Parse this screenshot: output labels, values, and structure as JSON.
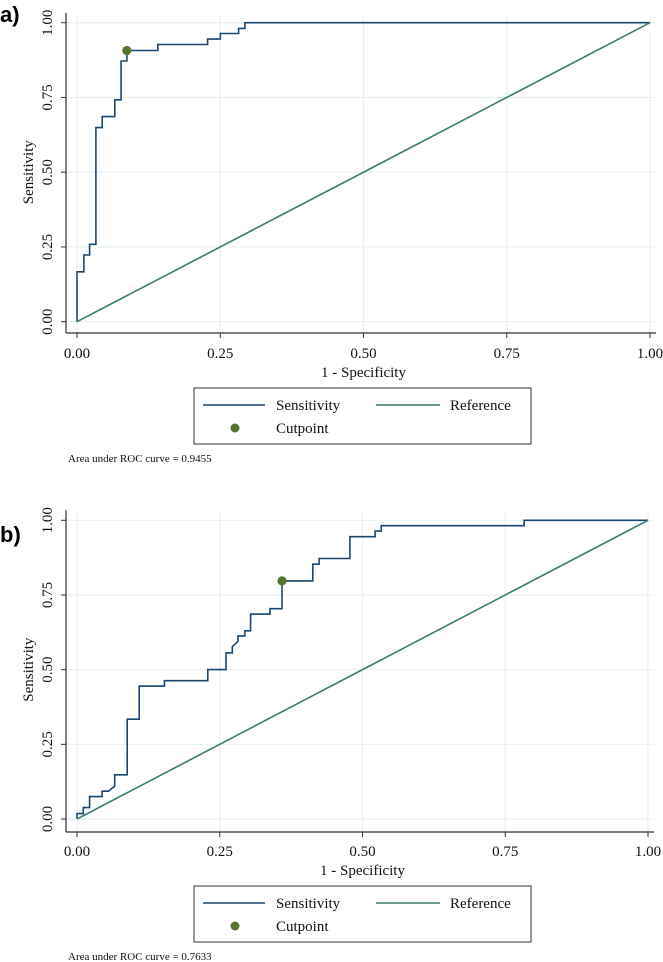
{
  "colors": {
    "sensitivity": "#1a476f",
    "reference": "#3a7d6e",
    "cutpoint": "#55752f",
    "grid": "#e8f0f2"
  },
  "chart_data": [
    {
      "type": "line",
      "panel_label": "a)",
      "xlabel": "1 - Specificity",
      "ylabel": "Sensitivity",
      "xlim": [
        0,
        1
      ],
      "ylim": [
        0,
        1
      ],
      "grid": true,
      "xticks": [
        "0.00",
        "0.25",
        "0.50",
        "0.75",
        "1.00"
      ],
      "yticks": [
        "0.00",
        "0.25",
        "0.50",
        "0.75",
        "1.00"
      ],
      "legend": {
        "placement": "bottom",
        "items": [
          "Sensitivity",
          "Reference",
          "Cutpoint"
        ]
      },
      "note": "Area under ROC curve = 0.9455",
      "series": [
        {
          "name": "Sensitivity",
          "kind": "step",
          "points": [
            [
              0,
              0
            ],
            [
              0,
              0.167
            ],
            [
              0.012,
              0.167
            ],
            [
              0.012,
              0.223
            ],
            [
              0.022,
              0.223
            ],
            [
              0.022,
              0.259
            ],
            [
              0.033,
              0.259
            ],
            [
              0.033,
              0.649
            ],
            [
              0.044,
              0.649
            ],
            [
              0.044,
              0.686
            ],
            [
              0.066,
              0.686
            ],
            [
              0.066,
              0.742
            ],
            [
              0.077,
              0.742
            ],
            [
              0.077,
              0.872
            ],
            [
              0.087,
              0.872
            ],
            [
              0.087,
              0.907
            ],
            [
              0.141,
              0.907
            ],
            [
              0.141,
              0.927
            ],
            [
              0.228,
              0.927
            ],
            [
              0.228,
              0.945
            ],
            [
              0.25,
              0.945
            ],
            [
              0.25,
              0.964
            ],
            [
              0.282,
              0.964
            ],
            [
              0.282,
              0.981
            ],
            [
              0.293,
              0.981
            ],
            [
              0.293,
              1
            ],
            [
              1,
              1
            ]
          ]
        },
        {
          "name": "Reference",
          "kind": "line",
          "points": [
            [
              0,
              0
            ],
            [
              1,
              1
            ]
          ]
        },
        {
          "name": "Cutpoint",
          "kind": "point",
          "points": [
            [
              0.087,
              0.907
            ]
          ]
        }
      ]
    },
    {
      "type": "line",
      "panel_label": "b)",
      "xlabel": "1 - Specificity",
      "ylabel": "Sensitivity",
      "xlim": [
        0,
        1
      ],
      "ylim": [
        0,
        1
      ],
      "grid": true,
      "xticks": [
        "0.00",
        "0.25",
        "0.50",
        "0.75",
        "1.00"
      ],
      "yticks": [
        "0.00",
        "0.25",
        "0.50",
        "0.75",
        "1.00"
      ],
      "legend": {
        "placement": "bottom",
        "items": [
          "Sensitivity",
          "Reference",
          "Cutpoint"
        ]
      },
      "note": "Area under ROC curve = 0.7633",
      "series": [
        {
          "name": "Sensitivity",
          "kind": "step",
          "points": [
            [
              0,
              0
            ],
            [
              0,
              0.018
            ],
            [
              0.011,
              0.018
            ],
            [
              0.011,
              0.038
            ],
            [
              0.022,
              0.038
            ],
            [
              0.022,
              0.075
            ],
            [
              0.044,
              0.075
            ],
            [
              0.044,
              0.093
            ],
            [
              0.055,
              0.093
            ],
            [
              0.066,
              0.11
            ],
            [
              0.066,
              0.148
            ],
            [
              0.088,
              0.148
            ],
            [
              0.088,
              0.334
            ],
            [
              0.109,
              0.334
            ],
            [
              0.109,
              0.445
            ],
            [
              0.153,
              0.445
            ],
            [
              0.153,
              0.463
            ],
            [
              0.229,
              0.463
            ],
            [
              0.229,
              0.5
            ],
            [
              0.261,
              0.5
            ],
            [
              0.261,
              0.556
            ],
            [
              0.272,
              0.556
            ],
            [
              0.272,
              0.577
            ],
            [
              0.282,
              0.595
            ],
            [
              0.282,
              0.613
            ],
            [
              0.294,
              0.613
            ],
            [
              0.294,
              0.63
            ],
            [
              0.304,
              0.63
            ],
            [
              0.304,
              0.686
            ],
            [
              0.338,
              0.686
            ],
            [
              0.338,
              0.704
            ],
            [
              0.359,
              0.704
            ],
            [
              0.359,
              0.797
            ],
            [
              0.413,
              0.797
            ],
            [
              0.413,
              0.853
            ],
            [
              0.424,
              0.853
            ],
            [
              0.424,
              0.872
            ],
            [
              0.478,
              0.872
            ],
            [
              0.478,
              0.945
            ],
            [
              0.522,
              0.945
            ],
            [
              0.522,
              0.964
            ],
            [
              0.533,
              0.964
            ],
            [
              0.533,
              0.982
            ],
            [
              0.783,
              0.982
            ],
            [
              0.783,
              1
            ],
            [
              1,
              1
            ]
          ]
        },
        {
          "name": "Reference",
          "kind": "line",
          "points": [
            [
              0,
              0
            ],
            [
              1,
              1
            ]
          ]
        },
        {
          "name": "Cutpoint",
          "kind": "point",
          "points": [
            [
              0.359,
              0.797
            ]
          ]
        }
      ]
    }
  ]
}
